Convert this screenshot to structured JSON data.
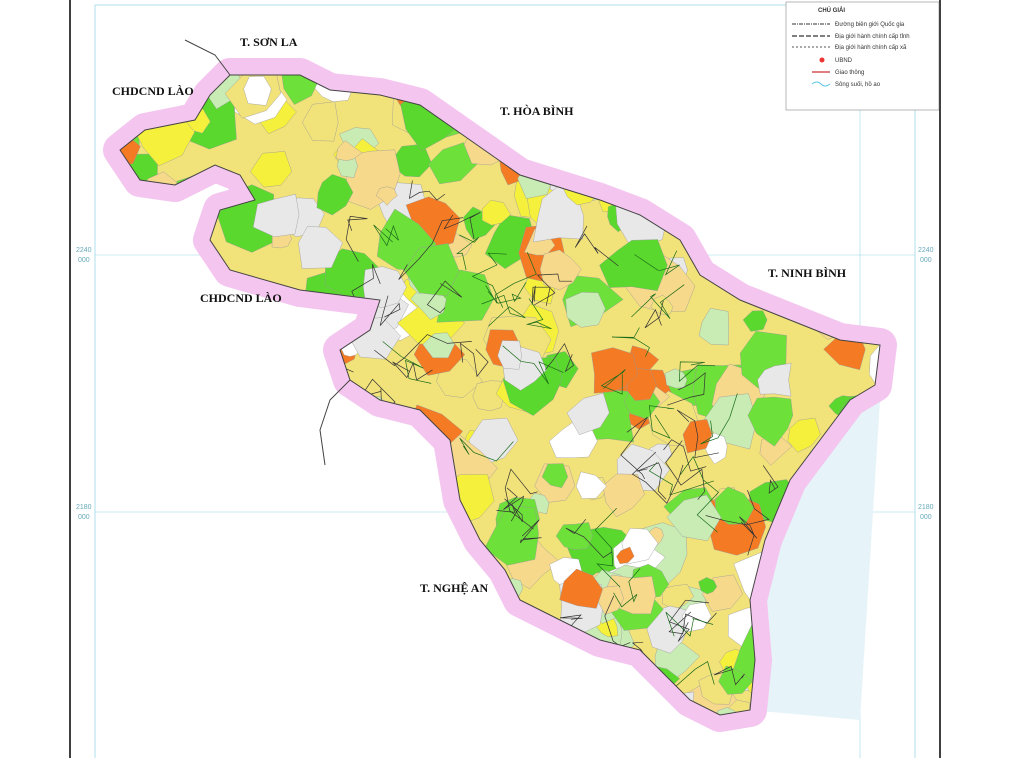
{
  "map": {
    "neighbors": [
      "T. SƠN LA",
      "CHDCND LÀO",
      "T. HÒA BÌNH",
      "CHDCND LÀO",
      "T. NINH BÌNH",
      "T. NGHỆ AN"
    ],
    "legend": {
      "title": "CHÚ GIẢI",
      "items": [
        "Đường biên giới Quốc gia",
        "Địa giới hành chính cấp tỉnh",
        "Địa giới hành chính cấp xã",
        "UBND",
        "Giao thông",
        "Sông suối, hồ ao"
      ]
    },
    "grid_labels": {
      "left": [
        [
          "2240",
          "000"
        ],
        [
          "2180",
          "000"
        ]
      ],
      "right": [
        [
          "2240",
          "000"
        ],
        [
          "2180",
          "000"
        ]
      ]
    }
  }
}
